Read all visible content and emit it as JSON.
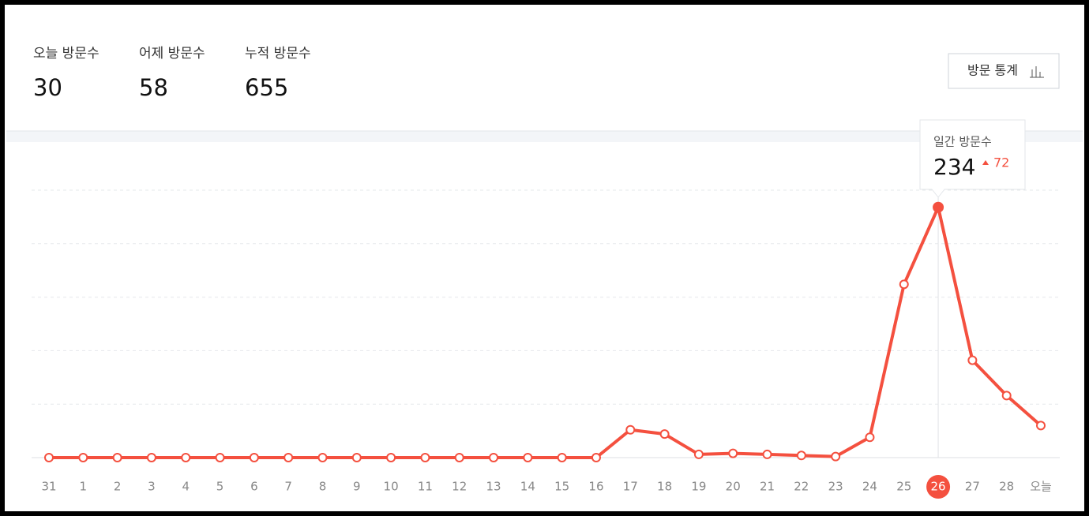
{
  "stats": [
    {
      "label": "오늘 방문수",
      "value": 30
    },
    {
      "label": "어제 방문수",
      "value": 58
    },
    {
      "label": "누적 방문수",
      "value": 655
    }
  ],
  "button": "방문 통계",
  "tooltip": {
    "title": "일간 방문수",
    "change": 72,
    "index": 26
  },
  "chart_data": {
    "type": "line",
    "categories": [
      "31",
      "1",
      "2",
      "3",
      "4",
      "5",
      "6",
      "7",
      "8",
      "9",
      "10",
      "11",
      "12",
      "13",
      "14",
      "15",
      "16",
      "17",
      "18",
      "19",
      "20",
      "21",
      "22",
      "23",
      "24",
      "25",
      "26",
      "27",
      "28",
      "오늘"
    ],
    "values": [
      0,
      0,
      0,
      0,
      0,
      0,
      0,
      0,
      0,
      0,
      0,
      0,
      0,
      0,
      0,
      0,
      0,
      26,
      22,
      3,
      4,
      3,
      2,
      1,
      19,
      162,
      234,
      91,
      58,
      30
    ],
    "color": "#f4503f",
    "ylim": [
      0,
      250
    ],
    "gridlines": [
      0,
      50,
      100,
      150,
      200,
      250
    ]
  }
}
